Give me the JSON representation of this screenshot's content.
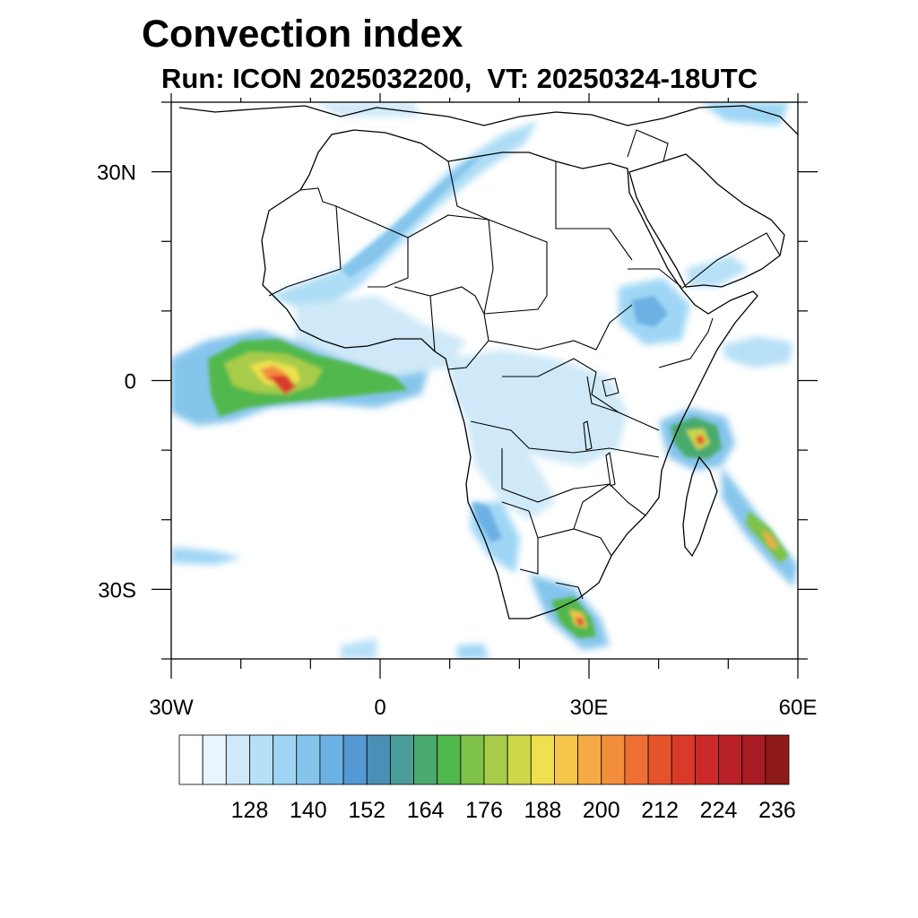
{
  "map": {
    "title": "Convection index",
    "subtitle": "Run: ICON 2025032200,  VT: 20250324-18UTC",
    "lon_ticks": [
      {
        "lon": -30,
        "label": "30W"
      },
      {
        "lon": 0,
        "label": "0"
      },
      {
        "lon": 30,
        "label": "30E"
      },
      {
        "lon": 60,
        "label": "60E"
      }
    ],
    "lat_ticks": [
      {
        "lat": 30,
        "label": "30N"
      },
      {
        "lat": 0,
        "label": "0"
      },
      {
        "lat": -30,
        "label": "30S"
      }
    ],
    "colorbar": {
      "labels": [
        "128",
        "140",
        "152",
        "164",
        "176",
        "188",
        "200",
        "212",
        "224",
        "236"
      ],
      "colors": [
        "#ffffff",
        "#e8f5fc",
        "#cfe9f8",
        "#b7e0f7",
        "#9fd6f5",
        "#85c5ec",
        "#6cb1e3",
        "#5599d4",
        "#4a8fb6",
        "#4a9e97",
        "#4aaa6e",
        "#51b84e",
        "#7ec24a",
        "#a8cc4a",
        "#cdd84b",
        "#eee04e",
        "#f6c64c",
        "#f6aa45",
        "#f38e3c",
        "#ee7034",
        "#e5532c",
        "#d93a29",
        "#cc2a2a",
        "#b92127",
        "#a81b22",
        "#8e1a1a"
      ]
    }
  }
}
